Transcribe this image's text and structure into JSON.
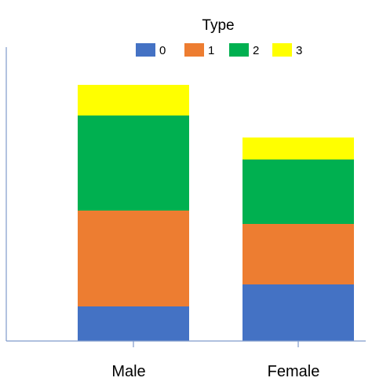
{
  "chart_data": {
    "type": "bar",
    "stacked": true,
    "title": "",
    "xlabel": "",
    "ylabel": "",
    "legend": {
      "title": "Type",
      "position": "top"
    },
    "categories": [
      "Male",
      "Female"
    ],
    "series": [
      {
        "name": "0",
        "color": "#4472C4",
        "values": [
          44,
          72
        ]
      },
      {
        "name": "1",
        "color": "#ED7D31",
        "values": [
          122,
          77
        ]
      },
      {
        "name": "2",
        "color": "#00B050",
        "values": [
          121,
          82
        ]
      },
      {
        "name": "3",
        "color": "#FFFF00",
        "values": [
          39,
          28
        ]
      }
    ],
    "ylim": [
      0,
      374
    ],
    "y_axis_ticks": "none",
    "grid": false
  }
}
